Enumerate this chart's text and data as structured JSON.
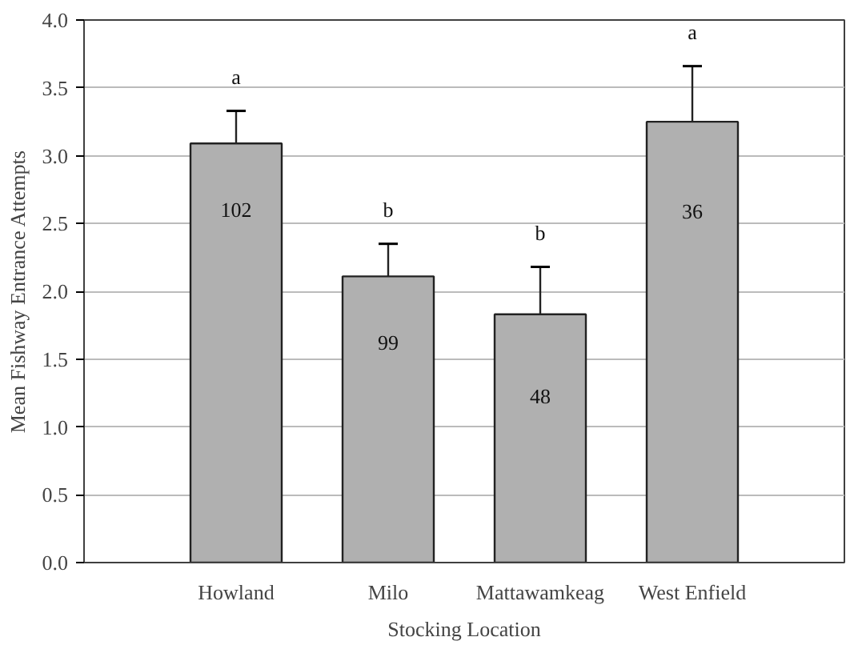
{
  "chart_data": {
    "type": "bar",
    "xlabel": "Stocking Location",
    "ylabel": "Mean Fishway Entrance Attempts",
    "categories": [
      "Howland",
      "Milo",
      "Mattawamkeag",
      "West Enfield"
    ],
    "values": [
      3.09,
      2.11,
      1.83,
      3.25
    ],
    "errors": [
      0.24,
      0.24,
      0.35,
      0.41
    ],
    "color": "#b0b0b0",
    "ylim": [
      0,
      4
    ],
    "yticks": [
      {
        "value": 0,
        "label": "0.0"
      },
      0.5,
      {
        "value": 1,
        "label": "1.0"
      },
      1.5,
      {
        "value": 2,
        "label": "2.0"
      },
      2.5,
      {
        "value": 3,
        "label": "3.0"
      },
      3.5,
      {
        "value": 4,
        "label": "4.0"
      }
    ],
    "grid": "y",
    "annotations": [
      "a",
      "b",
      "b",
      "a",
      "102",
      "99",
      "48",
      "36"
    ]
  }
}
